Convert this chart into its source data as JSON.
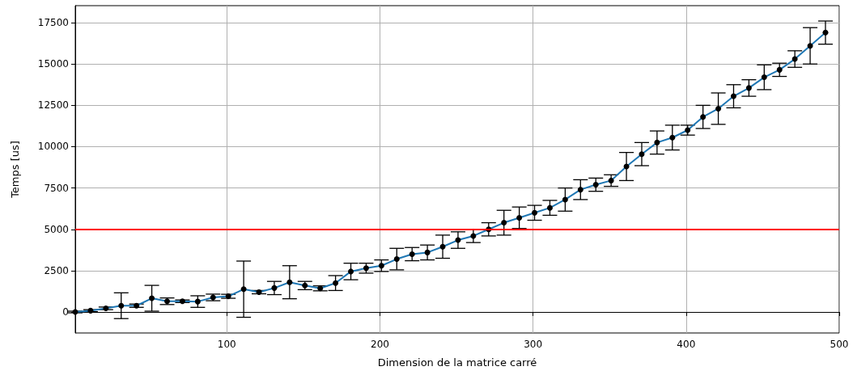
{
  "chart_data": {
    "type": "line",
    "xlabel": "Dimension de la matrice carré",
    "ylabel": "Temps [us]",
    "x": [
      1,
      11,
      21,
      31,
      41,
      51,
      61,
      71,
      81,
      91,
      101,
      111,
      121,
      131,
      141,
      151,
      161,
      171,
      181,
      191,
      201,
      211,
      221,
      231,
      241,
      251,
      261,
      271,
      281,
      291,
      301,
      311,
      321,
      331,
      341,
      351,
      361,
      371,
      381,
      391,
      401,
      411,
      421,
      431,
      441,
      451,
      461,
      471,
      481,
      491
    ],
    "series": [
      {
        "color": "#1f77b4",
        "values": [
          0,
          80,
          220,
          380,
          380,
          830,
          650,
          650,
          630,
          880,
          950,
          1380,
          1200,
          1450,
          1800,
          1600,
          1430,
          1750,
          2450,
          2650,
          2800,
          3200,
          3500,
          3600,
          3950,
          4350,
          4600,
          5000,
          5400,
          5700,
          6000,
          6300,
          6800,
          7400,
          7700,
          7950,
          8800,
          9550,
          10250,
          10550,
          11000,
          11800,
          12300,
          13050,
          13550,
          14200,
          14650,
          15300,
          16100,
          16900
        ],
        "errors": [
          50,
          60,
          80,
          780,
          100,
          780,
          200,
          80,
          350,
          200,
          120,
          1700,
          100,
          400,
          1000,
          250,
          150,
          450,
          500,
          300,
          350,
          650,
          400,
          450,
          700,
          500,
          400,
          400,
          750,
          650,
          450,
          450,
          700,
          600,
          400,
          350,
          850,
          700,
          700,
          750,
          300,
          700,
          950,
          700,
          500,
          750,
          400,
          500,
          1100,
          700
        ]
      }
    ],
    "xlim": [
      1,
      500
    ],
    "xticks": [
      100,
      200,
      300,
      400,
      500
    ],
    "ylim": [
      -1270,
      18530
    ],
    "yticks": [
      0,
      2500,
      5000,
      7500,
      10000,
      12500,
      15000,
      17500
    ],
    "ref_lines": [
      {
        "axis": "y",
        "value": 5000,
        "color": "#ff0000"
      }
    ],
    "grid": true,
    "marker": "circle",
    "line_style": "solid"
  }
}
